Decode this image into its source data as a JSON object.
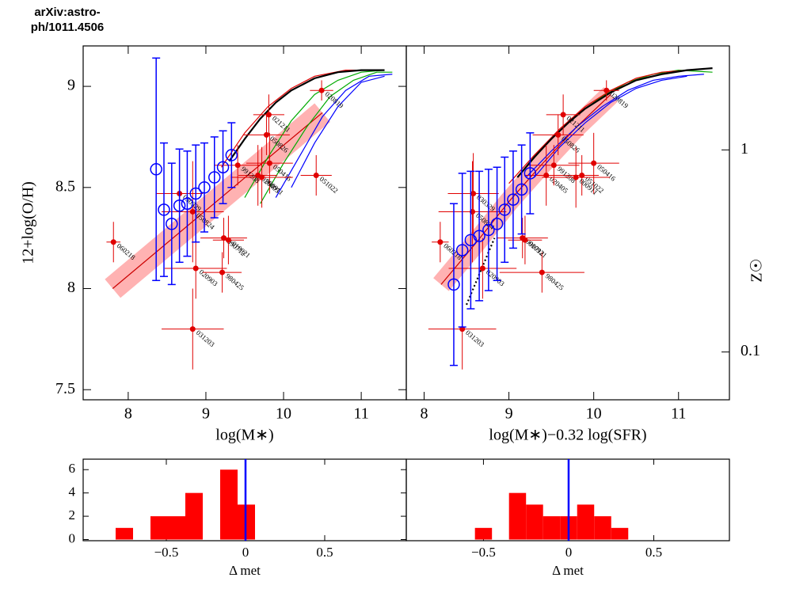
{
  "header": {
    "text": "arXiv:astro-ph/1011.4506"
  },
  "chart_data": [
    {
      "type": "scatter",
      "xlabel": "log(M∗)",
      "ylabel": "12+log(O/H)",
      "xlim": [
        7.42,
        11.58
      ],
      "ylim": [
        7.45,
        9.2
      ],
      "xticks": [
        8,
        9,
        10,
        11
      ],
      "yticks": [
        7.5,
        8,
        8.5,
        9
      ],
      "fit": {
        "color": "#ff6666",
        "band": 0.06,
        "x": [
          7.8,
          10.5
        ],
        "y": [
          8.0,
          8.87
        ]
      },
      "curves": [
        {
          "color": "#00aa00",
          "x": [
            9.5,
            9.8,
            10.1,
            10.4,
            10.7,
            11.0,
            11.3
          ],
          "y": [
            8.45,
            8.65,
            8.83,
            8.96,
            9.03,
            9.07,
            9.08
          ]
        },
        {
          "color": "#00aa00",
          "x": [
            9.7,
            10.0,
            10.3,
            10.6,
            10.9,
            11.2,
            11.4
          ],
          "y": [
            8.42,
            8.62,
            8.8,
            8.95,
            9.03,
            9.07,
            9.07
          ]
        },
        {
          "color": "#0000ff",
          "x": [
            9.9,
            10.2,
            10.5,
            10.8,
            11.1,
            11.4
          ],
          "y": [
            8.45,
            8.65,
            8.85,
            8.98,
            9.05,
            9.06
          ]
        },
        {
          "color": "#0000ff",
          "x": [
            10.1,
            10.4,
            10.7,
            11.0,
            11.3
          ],
          "y": [
            8.5,
            8.72,
            8.9,
            9.02,
            9.05
          ]
        },
        {
          "color": "#e00000",
          "x": [
            9.2,
            9.5,
            9.8,
            10.1,
            10.4,
            10.8,
            11.2
          ],
          "y": [
            8.6,
            8.77,
            8.9,
            8.99,
            9.05,
            9.08,
            9.08
          ]
        },
        {
          "color": "#000000",
          "x": [
            9.3,
            9.5,
            9.7,
            9.9,
            10.1,
            10.4,
            10.7,
            11.0,
            11.3
          ],
          "y": [
            8.63,
            8.74,
            8.84,
            8.92,
            8.98,
            9.04,
            9.07,
            9.08,
            9.08
          ]
        }
      ],
      "galaxies": {
        "color": "#e00000",
        "labels": [
          "060218",
          "020903",
          "031203",
          "980425",
          "050416",
          "051022",
          "020819",
          "050826",
          "021211",
          "990712",
          "030329",
          "020405",
          "050824",
          "991208",
          "000911",
          "010921"
        ],
        "x": [
          7.81,
          8.87,
          8.83,
          9.21,
          9.82,
          10.42,
          10.49,
          9.78,
          9.81,
          9.23,
          8.66,
          9.67,
          8.83,
          9.41,
          9.72,
          9.29
        ],
        "y": [
          8.23,
          8.1,
          7.8,
          8.08,
          8.62,
          8.56,
          8.98,
          8.76,
          8.86,
          8.25,
          8.47,
          8.56,
          8.38,
          8.61,
          8.55,
          8.24
        ],
        "xerr": [
          0.09,
          0.4,
          0.4,
          0.25,
          0.3,
          0.2,
          0.15,
          0.3,
          0.2,
          0.3,
          0.3,
          0.25,
          0.4,
          0.3,
          0.4,
          0.2
        ],
        "yerr": [
          0.1,
          0.15,
          0.2,
          0.1,
          0.15,
          0.1,
          0.05,
          0.1,
          0.1,
          0.1,
          0.2,
          0.15,
          0.25,
          0.1,
          0.15,
          0.12
        ]
      },
      "medians": {
        "color": "#0000ff",
        "x": [
          8.36,
          8.46,
          8.56,
          8.66,
          8.76,
          8.87,
          8.98,
          9.11,
          9.22,
          9.33
        ],
        "y": [
          8.59,
          8.39,
          8.32,
          8.41,
          8.42,
          8.47,
          8.5,
          8.55,
          8.6,
          8.66
        ],
        "yerr": [
          0.55,
          0.33,
          0.3,
          0.28,
          0.26,
          0.24,
          0.22,
          0.2,
          0.18,
          0.16
        ]
      }
    },
    {
      "type": "scatter",
      "xlabel": "log(M∗)−0.32 log(SFR)",
      "y2label": "Z☉",
      "xlim": [
        7.79,
        11.6
      ],
      "ylim": [
        7.45,
        9.2
      ],
      "xticks": [
        8,
        9,
        10,
        11
      ],
      "y2lim": [
        0.058,
        3.27
      ],
      "y2log": true,
      "y2ticks": [
        1,
        0.1
      ],
      "fit": {
        "color": "#ff6666",
        "band": 0.05,
        "x": [
          8.2,
          8.6,
          9.0,
          9.4,
          9.8,
          10.2
        ],
        "y": [
          8.02,
          8.22,
          8.43,
          8.62,
          8.8,
          8.96
        ]
      },
      "curves": [
        {
          "color": "#00aa00",
          "x": [
            9.2,
            9.5,
            9.8,
            10.1,
            10.4,
            10.7,
            11.0,
            11.4
          ],
          "y": [
            8.6,
            8.74,
            8.86,
            8.95,
            9.02,
            9.06,
            9.08,
            9.07
          ]
        },
        {
          "color": "#0000ff",
          "x": [
            9.2,
            9.5,
            9.8,
            10.1,
            10.4,
            10.7,
            11.0,
            11.3
          ],
          "y": [
            8.55,
            8.68,
            8.8,
            8.9,
            8.98,
            9.03,
            9.05,
            9.06
          ]
        },
        {
          "color": "#0000ff",
          "x": [
            9.3,
            9.6,
            9.9,
            10.2,
            10.5,
            10.8,
            11.1
          ],
          "y": [
            8.55,
            8.7,
            8.82,
            8.92,
            8.99,
            9.03,
            9.05
          ]
        },
        {
          "color": "#e00000",
          "x": [
            9.0,
            9.3,
            9.6,
            9.9,
            10.2,
            10.5,
            10.8,
            11.1
          ],
          "y": [
            8.52,
            8.66,
            8.79,
            8.9,
            8.98,
            9.04,
            9.07,
            9.08
          ]
        },
        {
          "color": "#000000",
          "x": [
            9.1,
            9.3,
            9.5,
            9.7,
            9.9,
            10.2,
            10.5,
            10.8,
            11.1,
            11.4
          ],
          "y": [
            8.55,
            8.65,
            8.74,
            8.82,
            8.89,
            8.97,
            9.03,
            9.06,
            9.08,
            9.09
          ]
        },
        {
          "color": "#000000",
          "dash": true,
          "x": [
            8.5,
            8.6,
            8.7,
            8.83
          ],
          "y": [
            7.92,
            8.02,
            8.12,
            8.25
          ]
        }
      ],
      "galaxies": {
        "color": "#e00000",
        "labels": [
          "060218",
          "020903",
          "031203",
          "980425",
          "050416",
          "051022",
          "020819",
          "050826",
          "021211",
          "990712",
          "030329",
          "020405",
          "050824",
          "991208",
          "000911",
          "010921"
        ],
        "x": [
          8.19,
          8.69,
          8.45,
          9.39,
          10.0,
          9.86,
          10.15,
          9.58,
          9.64,
          9.16,
          8.58,
          9.44,
          8.57,
          9.53,
          9.79,
          9.19
        ],
        "y": [
          8.23,
          8.1,
          7.8,
          8.08,
          8.62,
          8.56,
          8.98,
          8.76,
          8.86,
          8.25,
          8.47,
          8.56,
          8.38,
          8.61,
          8.55,
          8.24
        ],
        "xerr": [
          0.1,
          0.4,
          0.4,
          0.5,
          0.3,
          0.2,
          0.15,
          0.3,
          0.2,
          0.3,
          0.3,
          0.25,
          0.4,
          0.3,
          0.4,
          0.2
        ],
        "yerr": [
          0.1,
          0.15,
          0.2,
          0.1,
          0.15,
          0.1,
          0.05,
          0.1,
          0.1,
          0.1,
          0.2,
          0.15,
          0.25,
          0.1,
          0.15,
          0.12
        ]
      },
      "medians": {
        "color": "#0000ff",
        "x": [
          8.35,
          8.45,
          8.55,
          8.65,
          8.76,
          8.86,
          8.95,
          9.05,
          9.15,
          9.25
        ],
        "y": [
          8.02,
          8.19,
          8.24,
          8.26,
          8.29,
          8.32,
          8.39,
          8.44,
          8.49,
          8.57
        ],
        "yerr": [
          0.4,
          0.38,
          0.34,
          0.32,
          0.3,
          0.28,
          0.26,
          0.24,
          0.22,
          0.2
        ]
      }
    },
    {
      "type": "histogram",
      "xlabel": "Δ met",
      "color": "#ff0000",
      "vline": 0,
      "vline_color": "#0000ff",
      "xlim": [
        -1.025,
        1.015
      ],
      "ylim": [
        -0.1,
        6.9
      ],
      "xticks": [
        {
          "value": -0.5,
          "label": "−0.5"
        },
        0,
        0.5
      ],
      "yticks": [
        0,
        2,
        4,
        6
      ],
      "bins": [
        -0.82,
        -0.71,
        -0.6,
        -0.49,
        -0.38,
        -0.27,
        -0.16,
        -0.05,
        0.06
      ],
      "counts": [
        1,
        0,
        2,
        2,
        4,
        0,
        6,
        3
      ]
    },
    {
      "type": "histogram",
      "xlabel": "Δ met",
      "color": "#ff0000",
      "vline": 0,
      "vline_color": "#0000ff",
      "xlim": [
        -0.953,
        0.944
      ],
      "ylim": [
        -0.1,
        6.9
      ],
      "xticks": [
        {
          "value": -0.5,
          "label": "−0.5"
        },
        0,
        0.5
      ],
      "bins": [
        -0.55,
        -0.45,
        -0.35,
        -0.25,
        -0.15,
        -0.05,
        0.05,
        0.15,
        0.25,
        0.35
      ],
      "counts": [
        1,
        0,
        4,
        3,
        2,
        2,
        3,
        2,
        1
      ]
    }
  ]
}
